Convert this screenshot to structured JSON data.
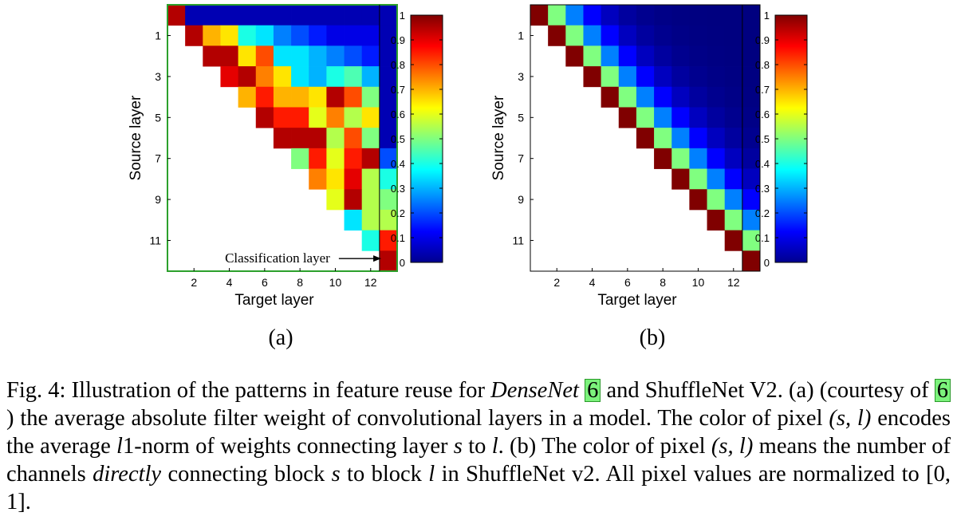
{
  "chart_data": [
    {
      "type": "heatmap",
      "panel_label": "(a)",
      "xlabel": "Target layer",
      "ylabel": "Source layer",
      "x_ticks": [
        "2",
        "4",
        "6",
        "8",
        "10",
        "12"
      ],
      "x_tick_values": [
        2,
        4,
        6,
        8,
        10,
        12
      ],
      "y_ticks": [
        "1",
        "3",
        "5",
        "7",
        "9",
        "11"
      ],
      "y_tick_values": [
        1,
        3,
        5,
        7,
        9,
        11
      ],
      "n_rows": 13,
      "n_cols": 13,
      "row_values": [
        0,
        1,
        2,
        3,
        4,
        5,
        6,
        7,
        8,
        9,
        10,
        11,
        12
      ],
      "col_values": [
        1,
        2,
        3,
        4,
        5,
        6,
        7,
        8,
        9,
        10,
        11,
        12,
        13
      ],
      "annotation": "Classification layer",
      "colorbar": {
        "min": 0,
        "max": 1,
        "ticks": [
          0,
          0.1,
          0.2,
          0.3,
          0.4,
          0.5,
          0.6,
          0.7,
          0.8,
          0.9,
          1
        ],
        "tick_labels": [
          "0",
          "0.1",
          "0.2",
          "0.3",
          "0.4",
          "0.5",
          "0.6",
          "0.7",
          "0.8",
          "0.9",
          "1"
        ]
      },
      "border_color": "#2ca02c",
      "values": [
        [
          0.95,
          0.05,
          0.05,
          0.05,
          0.05,
          0.05,
          0.05,
          0.05,
          0.05,
          0.05,
          0.05,
          0.05,
          0.05
        ],
        [
          null,
          0.95,
          0.7,
          0.65,
          0.4,
          0.35,
          0.25,
          0.2,
          0.15,
          0.1,
          0.1,
          0.1,
          0.05
        ],
        [
          null,
          null,
          0.95,
          0.95,
          0.65,
          0.8,
          0.35,
          0.35,
          0.3,
          0.25,
          0.2,
          0.15,
          0.05
        ],
        [
          null,
          null,
          null,
          0.9,
          0.95,
          0.75,
          0.65,
          0.35,
          0.3,
          0.4,
          0.45,
          0.3,
          0.05
        ],
        [
          null,
          null,
          null,
          null,
          0.7,
          0.85,
          0.7,
          0.7,
          0.65,
          0.95,
          0.8,
          0.5,
          0.05
        ],
        [
          null,
          null,
          null,
          null,
          null,
          0.95,
          0.85,
          0.85,
          0.6,
          0.75,
          0.55,
          0.65,
          0.05
        ],
        [
          null,
          null,
          null,
          null,
          null,
          null,
          0.95,
          0.95,
          0.95,
          0.55,
          0.8,
          0.5,
          0.05
        ],
        [
          null,
          null,
          null,
          null,
          null,
          null,
          null,
          0.5,
          0.85,
          0.6,
          0.85,
          0.95,
          0.2
        ],
        [
          null,
          null,
          null,
          null,
          null,
          null,
          null,
          null,
          0.75,
          0.65,
          0.9,
          0.55,
          0.4
        ],
        [
          null,
          null,
          null,
          null,
          null,
          null,
          null,
          null,
          null,
          0.6,
          0.95,
          0.55,
          0.5
        ],
        [
          null,
          null,
          null,
          null,
          null,
          null,
          null,
          null,
          null,
          null,
          0.35,
          0.55,
          0.55
        ],
        [
          null,
          null,
          null,
          null,
          null,
          null,
          null,
          null,
          null,
          null,
          null,
          0.4,
          0.85
        ],
        [
          null,
          null,
          null,
          null,
          null,
          null,
          null,
          null,
          null,
          null,
          null,
          null,
          0.95
        ]
      ]
    },
    {
      "type": "heatmap",
      "panel_label": "(b)",
      "xlabel": "Target layer",
      "ylabel": "Source layer",
      "x_ticks": [
        "2",
        "4",
        "6",
        "8",
        "10",
        "12"
      ],
      "x_tick_values": [
        2,
        4,
        6,
        8,
        10,
        12
      ],
      "y_ticks": [
        "1",
        "3",
        "5",
        "7",
        "9",
        "11"
      ],
      "y_tick_values": [
        1,
        3,
        5,
        7,
        9,
        11
      ],
      "n_rows": 13,
      "n_cols": 13,
      "row_values": [
        0,
        1,
        2,
        3,
        4,
        5,
        6,
        7,
        8,
        9,
        10,
        11,
        12
      ],
      "col_values": [
        1,
        2,
        3,
        4,
        5,
        6,
        7,
        8,
        9,
        10,
        11,
        12,
        13
      ],
      "colorbar": {
        "min": 0,
        "max": 1,
        "ticks": [
          0,
          0.1,
          0.2,
          0.3,
          0.4,
          0.5,
          0.6,
          0.7,
          0.8,
          0.9,
          1
        ],
        "tick_labels": [
          "0",
          "0.1",
          "0.2",
          "0.3",
          "0.4",
          "0.5",
          "0.6",
          "0.7",
          "0.8",
          "0.9",
          "1"
        ]
      },
      "border_color": "#000000",
      "offdiag_values": [
        1,
        0.5,
        0.25,
        0.125,
        0.0625,
        0.03125,
        0.015625,
        0.0078125,
        0.00390625,
        0.001953125,
        0.0009765625,
        0.00048828125,
        0.000244140625
      ]
    }
  ],
  "caption": {
    "fig_label": "Fig. 4:",
    "t1": " Illustration of the patterns in feature reuse for ",
    "densenet": "DenseNet",
    "ref1": "6",
    "t2": " and ShuffleNet V2. (a) (courtesy of ",
    "ref2": "6",
    "t3": ") the average absolute filter weight of convolutional layers in a model. The color of pixel ",
    "m1": "(s, l)",
    "t4": " encodes the average ",
    "m2": "l",
    "t5": "1-norm of weights connecting layer ",
    "m3": "s",
    "t6": " to ",
    "m4": "l",
    "t7": ". (b) The color of pixel ",
    "m5": "(s, l)",
    "t8": " means the number of channels ",
    "directly": "directly",
    "t9": " connecting block ",
    "m6": "s",
    "t10": " to block ",
    "m7": "l",
    "t11": " in ShuffleNet v2. All pixel values are normalized to ",
    "m8": "[0, 1]",
    "t12": "."
  }
}
